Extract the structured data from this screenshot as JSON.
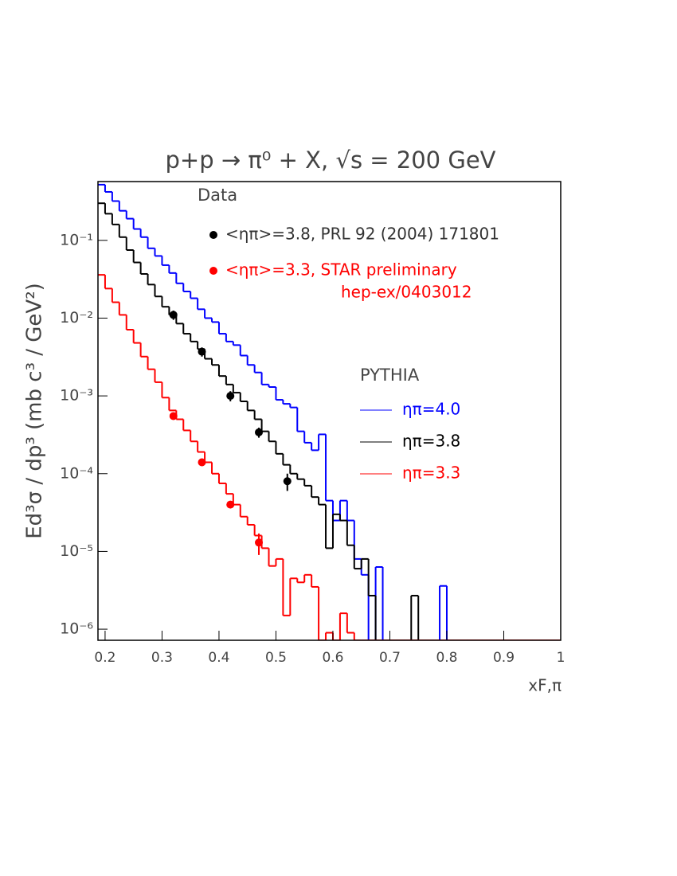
{
  "chart_data": {
    "type": "histogram",
    "title": "p+p → π⁰ + X, √s = 200 GeV",
    "x_label": "xF,π",
    "y_label": "Ed³σ / dp³ (mb c³ / GeV²)",
    "log_y": true,
    "xlim": [
      0.1875,
      1
    ],
    "ylim": [
      7.2e-07,
      0.57
    ],
    "xticks": [
      0.2,
      0.3,
      0.4,
      0.5,
      0.6,
      0.7,
      0.8,
      0.9,
      1
    ],
    "yticks": [
      {
        "value": 1e-06,
        "label": "10⁻⁶"
      },
      {
        "value": 1e-05,
        "label": "10⁻⁵"
      },
      {
        "value": 0.0001,
        "label": "10⁻⁴"
      },
      {
        "value": 0.001,
        "label": "10⁻³"
      },
      {
        "value": 0.01,
        "label": "10⁻²"
      },
      {
        "value": 0.1,
        "label": "10⁻¹"
      }
    ],
    "data_legend_title": "Data",
    "model_legend_title": "PYTHIA",
    "bins": [
      0.1875,
      0.2,
      0.2125,
      0.225,
      0.2375,
      0.25,
      0.2625,
      0.275,
      0.2875,
      0.3,
      0.3125,
      0.325,
      0.3375,
      0.35,
      0.3625,
      0.375,
      0.3875,
      0.4,
      0.4125,
      0.425,
      0.4375,
      0.45,
      0.4625,
      0.475,
      0.4875,
      0.5,
      0.5125,
      0.525,
      0.5375,
      0.55,
      0.5625,
      0.575,
      0.5875,
      0.6,
      0.6125,
      0.625,
      0.6375,
      0.65,
      0.6625,
      0.675,
      0.6875,
      0.7,
      0.7125,
      0.725,
      0.7375,
      0.75,
      0.7625,
      0.775,
      0.7875,
      0.8,
      0.8125,
      0.825,
      0.8375,
      0.85,
      0.8625,
      0.875,
      0.8875,
      0.9,
      0.9125,
      0.925,
      0.9375,
      0.95,
      0.9625,
      0.975,
      0.9875,
      1
    ],
    "series": [
      {
        "name": "ηπ=4.0",
        "color": "#0000ff",
        "values": [
          0.52,
          0.42,
          0.32,
          0.24,
          0.19,
          0.14,
          0.11,
          0.079,
          0.063,
          0.048,
          0.038,
          0.028,
          0.022,
          0.018,
          0.013,
          0.01,
          0.0089,
          0.0063,
          0.005,
          0.0045,
          0.0033,
          0.0025,
          0.002,
          0.0014,
          0.0013,
          0.00089,
          0.00079,
          0.00071,
          0.00035,
          0.00025,
          0.0002,
          0.00032,
          4.5e-05,
          2.5e-05,
          4.5e-05,
          2.5e-05,
          8e-06,
          5e-06,
          0,
          6.3e-06,
          0,
          0,
          0,
          0,
          0,
          0,
          0,
          0,
          3.6e-06,
          0,
          0,
          0,
          0,
          0,
          0,
          0,
          0,
          0,
          0,
          0,
          0,
          0,
          0,
          0,
          0
        ]
      },
      {
        "name": "ηπ=3.8",
        "color": "#000000",
        "values": [
          0.3,
          0.22,
          0.16,
          0.11,
          0.075,
          0.052,
          0.037,
          0.027,
          0.019,
          0.014,
          0.011,
          0.0085,
          0.0063,
          0.005,
          0.004,
          0.003,
          0.0025,
          0.0018,
          0.0014,
          0.0011,
          0.00085,
          0.00065,
          0.0005,
          0.00035,
          0.00026,
          0.00018,
          0.00013,
          0.0001,
          8.5e-05,
          7e-05,
          5e-05,
          4e-05,
          1.1e-05,
          3e-05,
          2.5e-05,
          1.2e-05,
          6e-06,
          8e-06,
          2.7e-06,
          0,
          0,
          0,
          0,
          0,
          2.7e-06,
          0,
          0,
          0,
          0,
          0,
          0,
          0,
          0,
          0,
          0,
          0,
          0,
          0,
          0,
          0,
          0,
          0,
          0,
          0,
          0
        ]
      },
      {
        "name": "ηπ=3.3",
        "color": "#ff0000",
        "values": [
          0.036,
          0.024,
          0.016,
          0.011,
          0.0071,
          0.0048,
          0.0032,
          0.0022,
          0.0015,
          0.00095,
          0.00065,
          0.0005,
          0.00036,
          0.00026,
          0.00019,
          0.00014,
          0.0001,
          7.5e-05,
          5.5e-05,
          4e-05,
          2.8e-05,
          2.2e-05,
          1.6e-05,
          1.1e-05,
          6.5e-06,
          8e-06,
          1.5e-06,
          4.5e-06,
          4e-06,
          5e-06,
          3.5e-06,
          0,
          9e-07,
          0,
          1.6e-06,
          9e-07,
          0,
          0,
          0,
          0,
          0,
          0,
          0,
          0,
          0,
          0,
          0,
          0,
          0,
          0,
          0,
          0,
          0,
          0,
          0,
          0,
          0,
          0,
          0,
          0,
          0,
          0,
          0,
          0,
          0
        ]
      }
    ],
    "points": [
      {
        "name": "<ηπ>=3.8, PRL 92 (2004) 171801",
        "color": "#000000",
        "x": [
          0.32,
          0.37,
          0.42,
          0.47,
          0.52
        ],
        "values": [
          0.011,
          0.0037,
          0.001,
          0.00034,
          8e-05
        ],
        "errors": [
          0.0015,
          0.0005,
          0.00015,
          5e-05,
          2e-05
        ]
      },
      {
        "name": "<ηπ>=3.3, STAR preliminary",
        "note": "hep-ex/0403012",
        "color": "#ff0000",
        "x": [
          0.32,
          0.37,
          0.42,
          0.47
        ],
        "values": [
          0.00055,
          0.00014,
          4e-05,
          1.3e-05
        ],
        "errors": [
          4e-05,
          1e-05,
          3e-06,
          4e-06
        ]
      }
    ]
  }
}
